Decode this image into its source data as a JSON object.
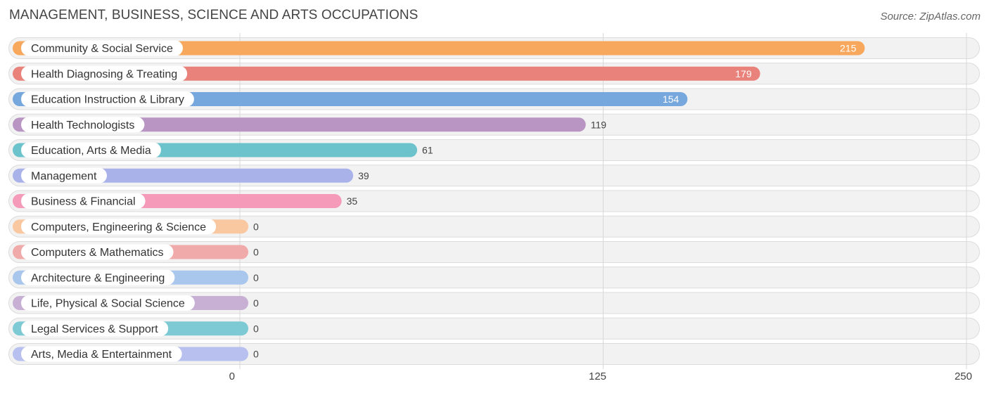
{
  "title": "MANAGEMENT, BUSINESS, SCIENCE AND ARTS OCCUPATIONS",
  "source": "Source: ZipAtlas.com",
  "chart_data": {
    "type": "bar",
    "orientation": "horizontal",
    "title": "MANAGEMENT, BUSINESS, SCIENCE AND ARTS OCCUPATIONS",
    "xlabel": "",
    "ylabel": "",
    "xlim": [
      0,
      250
    ],
    "ticks": [
      {
        "value": 0,
        "label": "0"
      },
      {
        "value": 125,
        "label": "125"
      },
      {
        "value": 250,
        "label": "250"
      }
    ],
    "grid": true,
    "categories": [
      "Community & Social Service",
      "Health Diagnosing & Treating",
      "Education Instruction & Library",
      "Health Technologists",
      "Education, Arts & Media",
      "Management",
      "Business & Financial",
      "Computers, Engineering & Science",
      "Computers & Mathematics",
      "Architecture & Engineering",
      "Life, Physical & Social Science",
      "Legal Services & Support",
      "Arts, Media & Entertainment"
    ],
    "values": [
      215,
      179,
      154,
      119,
      61,
      39,
      35,
      0,
      0,
      0,
      0,
      0,
      0
    ],
    "value_labels": [
      "215",
      "179",
      "154",
      "119",
      "61",
      "39",
      "35",
      "0",
      "0",
      "0",
      "0",
      "0",
      "0"
    ],
    "colors": [
      "#f7a85c",
      "#e8827a",
      "#76a7dd",
      "#b895c2",
      "#6cc3cc",
      "#a9b3ea",
      "#f59ab8",
      "#f9c7a0",
      "#f0aaa9",
      "#a9c6ec",
      "#c8b0d4",
      "#7ecad4",
      "#b7c0ee"
    ]
  }
}
